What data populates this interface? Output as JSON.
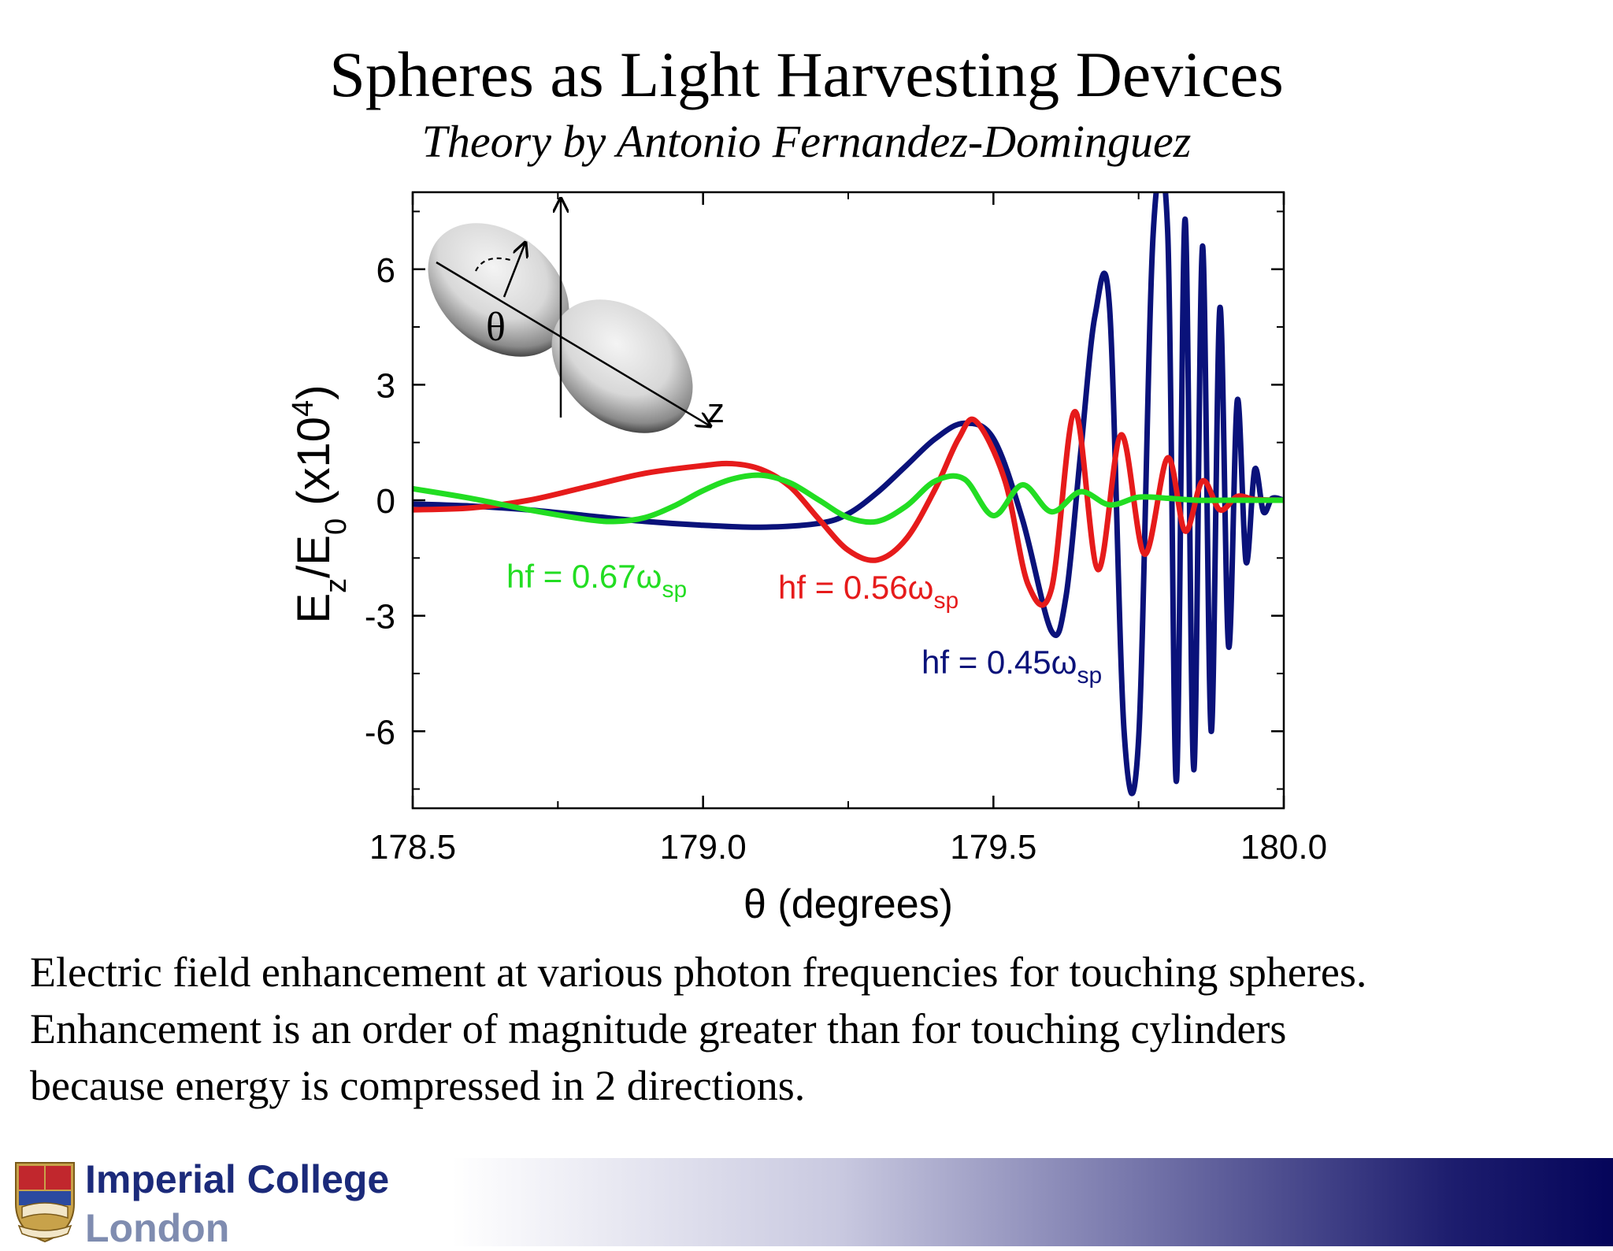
{
  "slide": {
    "title": "Spheres as Light Harvesting Devices",
    "subtitle": "Theory by Antonio Fernandez-Dominguez",
    "caption_lines": [
      "Electric field enhancement at various photon frequencies for touching spheres.",
      "Enhancement  is an order of magnitude greater than for touching cylinders",
      "because energy is compressed in 2 directions."
    ]
  },
  "logo": {
    "line1": "Imperial College",
    "line2": "London"
  },
  "chart_data": {
    "type": "line",
    "xlabel": "θ (degrees)",
    "ylabel": "E_z/E_0 (x10^4)",
    "xlim": [
      178.5,
      180.0
    ],
    "ylim": [
      -8,
      8
    ],
    "x_ticks": [
      178.5,
      179.0,
      179.5,
      180.0
    ],
    "x_tick_labels": [
      "178.5",
      "179.0",
      "179.5",
      "180.0"
    ],
    "y_ticks": [
      6,
      3,
      0,
      -3,
      -6
    ],
    "y_tick_labels": [
      "6",
      "3",
      "0",
      "-3",
      "-6"
    ],
    "inset": {
      "theta_label": "θ",
      "axis_label": "z"
    },
    "series": [
      {
        "name": "hf = 0.45ω_sp",
        "label_main": "hf = 0.45ω",
        "label_sub": "sp",
        "color": "#0a127a",
        "x": [
          178.5,
          178.6,
          178.7,
          178.8,
          178.9,
          179.0,
          179.1,
          179.2,
          179.25,
          179.3,
          179.35,
          179.4,
          179.45,
          179.5,
          179.55,
          179.6,
          179.625,
          179.65,
          179.675,
          179.7,
          179.725,
          179.75,
          179.775,
          179.8,
          179.815,
          179.83,
          179.845,
          179.86,
          179.875,
          179.89,
          179.905,
          179.92,
          179.935,
          179.95,
          179.965,
          179.98,
          180.0
        ],
        "y": [
          -0.1,
          -0.15,
          -0.25,
          -0.4,
          -0.55,
          -0.65,
          -0.7,
          -0.6,
          -0.35,
          0.2,
          0.9,
          1.6,
          2.0,
          1.6,
          -0.5,
          -3.4,
          -2.5,
          1.2,
          4.8,
          5.0,
          -6.0,
          -6.2,
          6.9,
          7.0,
          -7.3,
          7.3,
          -7.0,
          6.6,
          -6.0,
          5.0,
          -3.8,
          2.6,
          -1.6,
          0.8,
          -0.3,
          0.05,
          0
        ]
      },
      {
        "name": "hf = 0.56ω_sp",
        "label_main": "hf = 0.56ω",
        "label_sub": "sp",
        "color": "#e61b1b",
        "x": [
          178.5,
          178.6,
          178.7,
          178.8,
          178.9,
          179.0,
          179.05,
          179.1,
          179.15,
          179.2,
          179.25,
          179.3,
          179.35,
          179.4,
          179.44,
          179.47,
          179.52,
          179.56,
          179.6,
          179.64,
          179.68,
          179.72,
          179.76,
          179.8,
          179.83,
          179.86,
          179.89,
          179.92,
          179.95,
          180.0
        ],
        "y": [
          -0.25,
          -0.2,
          0.0,
          0.35,
          0.7,
          0.9,
          0.95,
          0.8,
          0.35,
          -0.5,
          -1.3,
          -1.55,
          -1.0,
          0.3,
          1.6,
          2.05,
          0.5,
          -2.2,
          -2.3,
          2.3,
          -1.8,
          1.7,
          -1.4,
          1.1,
          -0.8,
          0.5,
          -0.25,
          0.1,
          0.02,
          0
        ]
      },
      {
        "name": "hf = 0.67ω_sp",
        "label_main": "hf = 0.67ω",
        "label_sub": "sp",
        "color": "#22dd22",
        "x": [
          178.5,
          178.6,
          178.7,
          178.8,
          178.85,
          178.9,
          178.95,
          179.0,
          179.05,
          179.1,
          179.15,
          179.2,
          179.25,
          179.3,
          179.35,
          179.4,
          179.45,
          179.5,
          179.55,
          179.6,
          179.65,
          179.7,
          179.75,
          179.8,
          179.85,
          179.9,
          180.0
        ],
        "y": [
          0.3,
          0.05,
          -0.25,
          -0.5,
          -0.55,
          -0.45,
          -0.15,
          0.25,
          0.55,
          0.65,
          0.45,
          0.0,
          -0.45,
          -0.55,
          -0.15,
          0.5,
          0.55,
          -0.4,
          0.4,
          -0.3,
          0.22,
          -0.12,
          0.08,
          0.05,
          0.0,
          0.0,
          0.0
        ]
      }
    ]
  }
}
